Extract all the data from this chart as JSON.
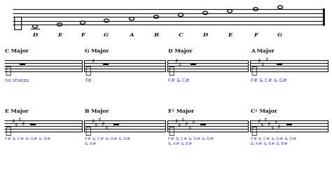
{
  "bg_color": "#ffffff",
  "blue_color": "#4444cc",
  "black_color": "#111111",
  "top_staff_note_labels": [
    "D",
    "E",
    "F",
    "G",
    "A",
    "B",
    "C",
    "D",
    "E",
    "F",
    "G"
  ],
  "row2_keys": [
    "C Major",
    "G Major",
    "D Major",
    "A Major"
  ],
  "row2_sharps": [
    "no sharps",
    "F#",
    "F# & C#",
    "F# & C# & G#"
  ],
  "row3_keys": [
    "E Major",
    "B Major",
    "F♯ Major",
    "C♯ Major"
  ],
  "row3_sharps_line1": [
    "F# & C# & G# & D#",
    "F# & C# & G# & D#",
    "F# & C# & G# & D#",
    "F# & C# & G# & D#"
  ],
  "row3_sharps_line2": [
    "",
    "& A#",
    "& A# & E#",
    "& A# & E# & B#"
  ],
  "sharp_counts_row2": [
    0,
    1,
    2,
    3
  ],
  "sharp_counts_row3": [
    4,
    5,
    6,
    7
  ]
}
